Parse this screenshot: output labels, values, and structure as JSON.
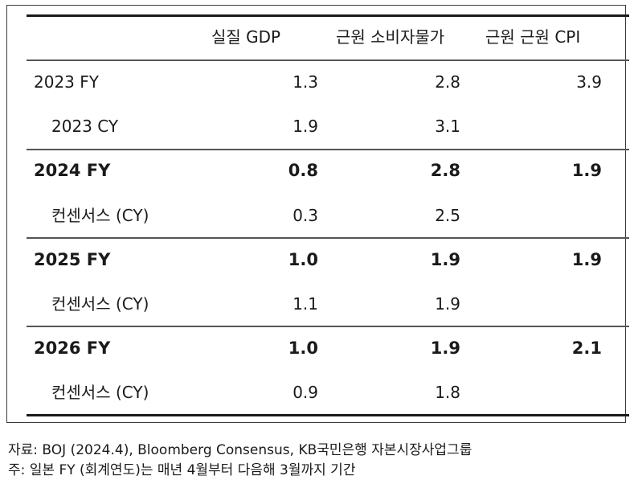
{
  "table": {
    "headers": [
      "실질 GDP",
      "근원 소비자물가",
      "근원 근원 CPI"
    ],
    "rows": [
      {
        "label": "2023 FY",
        "gdp": "1.3",
        "core": "2.8",
        "corecore": "3.9",
        "bold": false,
        "indent": false
      },
      {
        "label": "2023 CY",
        "gdp": "1.9",
        "core": "3.1",
        "corecore": "",
        "bold": false,
        "indent": true
      },
      {
        "label": "2024 FY",
        "gdp": "0.8",
        "core": "2.8",
        "corecore": "1.9",
        "bold": true,
        "indent": false
      },
      {
        "label": "컨센서스 (CY)",
        "gdp": "0.3",
        "core": "2.5",
        "corecore": "",
        "bold": false,
        "indent": true
      },
      {
        "label": "2025 FY",
        "gdp": "1.0",
        "core": "1.9",
        "corecore": "1.9",
        "bold": true,
        "indent": false
      },
      {
        "label": "컨센서스 (CY)",
        "gdp": "1.1",
        "core": "1.9",
        "corecore": "",
        "bold": false,
        "indent": true
      },
      {
        "label": "2026 FY",
        "gdp": "1.0",
        "core": "1.9",
        "corecore": "2.1",
        "bold": true,
        "indent": false
      },
      {
        "label": "컨센서스 (CY)",
        "gdp": "0.9",
        "core": "1.8",
        "corecore": "",
        "bold": false,
        "indent": true
      }
    ]
  },
  "footnotes": {
    "source": "자료: BOJ (2024.4), Bloomberg Consensus, KB국민은행 자본시장사업그룹",
    "note": "주: 일본 FY (회계연도)는 매년 4월부터 다음해 3월까지 기간"
  }
}
